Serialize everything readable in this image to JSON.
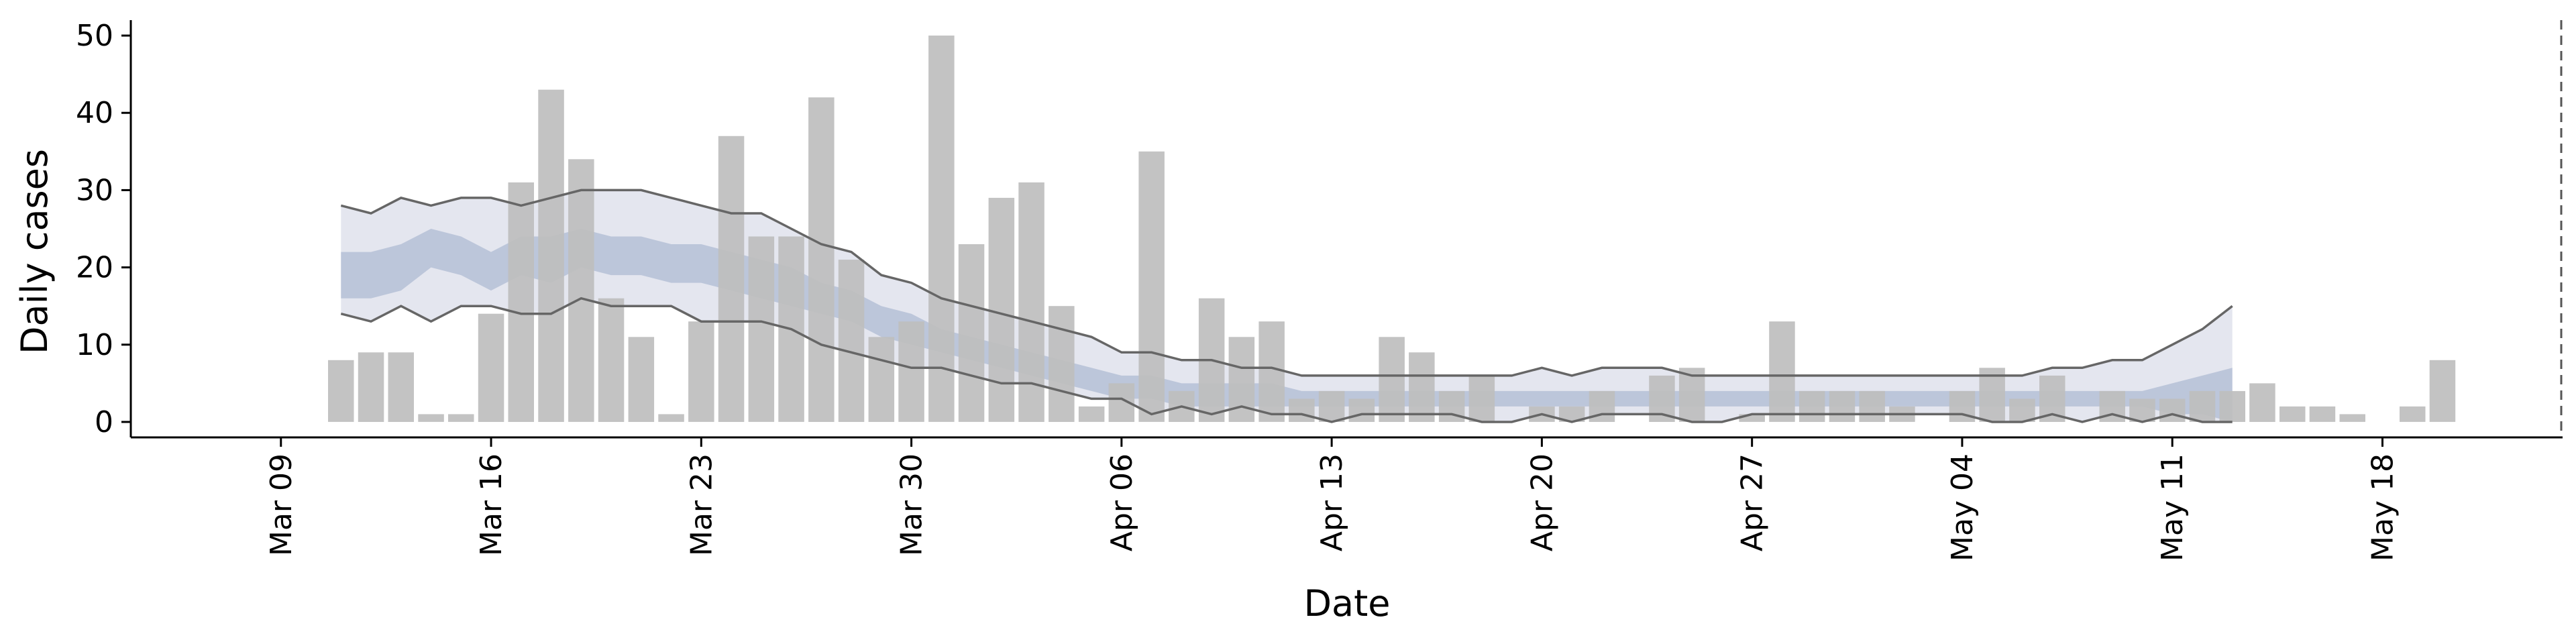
{
  "chart_data": {
    "type": "bar",
    "xlabel": "Date",
    "ylabel": "Daily cases",
    "ylim": [
      -2,
      52
    ],
    "yticks": [
      0,
      10,
      20,
      30,
      40,
      50
    ],
    "xlim": [
      "2020-03-04",
      "2020-05-24"
    ],
    "x_tick_dates": [
      "2020-03-09",
      "2020-03-16",
      "2020-03-23",
      "2020-03-30",
      "2020-04-06",
      "2020-04-13",
      "2020-04-20",
      "2020-04-27",
      "2020-05-04",
      "2020-05-11",
      "2020-05-18"
    ],
    "x_tick_labels": [
      "Mar 09",
      "Mar 16",
      "Mar 23",
      "Mar 30",
      "Apr 06",
      "Apr 13",
      "Apr 20",
      "Apr 27",
      "May 04",
      "May 11",
      "May 18"
    ],
    "grid": false,
    "reference_line_date": "2020-05-24",
    "bar_start_date": "2020-03-11",
    "bars": [
      8,
      9,
      9,
      1,
      1,
      14,
      31,
      43,
      34,
      16,
      11,
      1,
      13,
      37,
      24,
      24,
      42,
      21,
      11,
      13,
      50,
      23,
      29,
      31,
      15,
      2,
      5,
      35,
      4,
      16,
      11,
      13,
      3,
      4,
      3,
      11,
      9,
      4,
      6,
      0,
      2,
      2,
      4,
      0,
      6,
      7,
      0,
      1,
      13,
      4,
      4,
      4,
      2,
      0,
      4,
      7,
      3,
      6,
      0,
      4,
      3,
      3,
      4,
      4,
      5,
      2,
      2,
      1,
      0,
      2,
      8
    ],
    "band_start_date": "2020-03-11",
    "outer_band": {
      "upper": [
        28,
        27,
        29,
        28,
        29,
        29,
        28,
        29,
        30,
        30,
        30,
        29,
        28,
        27,
        27,
        25,
        23,
        22,
        19,
        18,
        16,
        15,
        14,
        13,
        12,
        11,
        9,
        9,
        8,
        8,
        7,
        7,
        6,
        6,
        6,
        6,
        6,
        6,
        6,
        6,
        7,
        6,
        7,
        7,
        7,
        6,
        6,
        6,
        6,
        6,
        6,
        6,
        6,
        6,
        6,
        6,
        6,
        7,
        7,
        8,
        8,
        10,
        12,
        15
      ],
      "lower": [
        14,
        13,
        15,
        13,
        15,
        15,
        14,
        14,
        16,
        15,
        15,
        15,
        13,
        13,
        13,
        12,
        10,
        9,
        8,
        7,
        7,
        6,
        5,
        5,
        4,
        3,
        3,
        1,
        2,
        1,
        2,
        1,
        1,
        0,
        1,
        1,
        1,
        1,
        0,
        0,
        1,
        0,
        1,
        1,
        1,
        0,
        0,
        1,
        1,
        1,
        1,
        1,
        1,
        1,
        1,
        0,
        0,
        1,
        0,
        1,
        0,
        1,
        0,
        0
      ]
    },
    "inner_band": {
      "upper": [
        22,
        22,
        23,
        25,
        24,
        22,
        24,
        24,
        25,
        24,
        24,
        23,
        23,
        22,
        21,
        20,
        18,
        17,
        15,
        14,
        12,
        11,
        10,
        9,
        8,
        7,
        6,
        6,
        5,
        5,
        5,
        5,
        4,
        4,
        4,
        4,
        4,
        4,
        4,
        4,
        4,
        4,
        4,
        4,
        4,
        4,
        4,
        4,
        4,
        4,
        4,
        4,
        4,
        4,
        4,
        4,
        4,
        4,
        4,
        4,
        4,
        5,
        6,
        7
      ],
      "lower": [
        16,
        16,
        17,
        20,
        19,
        17,
        19,
        18,
        20,
        19,
        19,
        18,
        18,
        17,
        16,
        15,
        14,
        13,
        11,
        10,
        9,
        8,
        7,
        6,
        5,
        4,
        3,
        3,
        2,
        2,
        2,
        2,
        2,
        2,
        2,
        2,
        2,
        2,
        2,
        2,
        2,
        2,
        2,
        2,
        2,
        2,
        2,
        2,
        2,
        2,
        2,
        2,
        2,
        2,
        2,
        2,
        2,
        2,
        2,
        2,
        2,
        1,
        1,
        0
      ]
    },
    "colors": {
      "bars": "#bebebe",
      "outer_band": "#e4e6ef",
      "inner_band": "#b5bfd6",
      "band_line": "#666666"
    }
  }
}
